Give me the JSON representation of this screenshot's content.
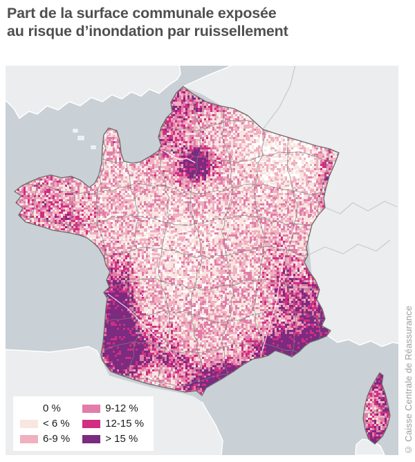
{
  "title": {
    "line1": "Part de la surface communale exposée",
    "line2": "au risque d’inondation par ruissellement"
  },
  "credit": "© Caisse Centrale de Réassurance",
  "legend": {
    "items": [
      {
        "label": "0 %",
        "color": "#ffffff"
      },
      {
        "label": "< 6 %",
        "color": "#f8e6e1"
      },
      {
        "label": "6-9 %",
        "color": "#efb0c0"
      },
      {
        "label": "9-12 %",
        "color": "#e07da8"
      },
      {
        "label": "12-15 %",
        "color": "#d02f82"
      },
      {
        "label": "> 15 %",
        "color": "#7b2b80"
      }
    ]
  },
  "map": {
    "sea_color": "#c9d0d6",
    "neighbor_land_color": "#ebedee",
    "neighbor_border_color": "#ffffff",
    "country_inner_border_color": "#c9c9c9",
    "france_base_color": "#ffffff",
    "department_border_color": "#7f7f7f",
    "france_outline_color": "#6a6a6a",
    "river_color": "#ffffff"
  }
}
